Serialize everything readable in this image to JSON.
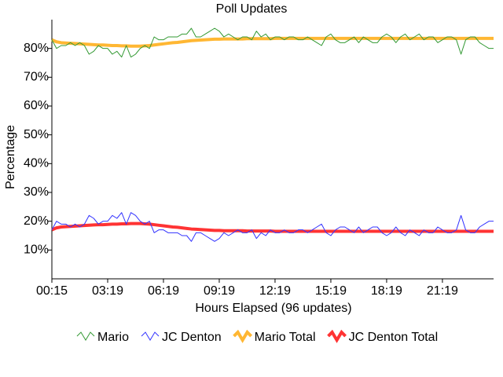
{
  "chart_data": {
    "type": "line",
    "title": "Poll Updates",
    "x_label": "Hours Elapsed (96 updates)",
    "y_label": "Percentage",
    "categories": [
      "00:15",
      null,
      null,
      null,
      null,
      null,
      null,
      null,
      null,
      null,
      null,
      null,
      "03:19",
      null,
      null,
      null,
      null,
      null,
      null,
      null,
      null,
      null,
      null,
      null,
      "06:19",
      null,
      null,
      null,
      null,
      null,
      null,
      null,
      null,
      null,
      null,
      null,
      "09:19",
      null,
      null,
      null,
      null,
      null,
      null,
      null,
      null,
      null,
      null,
      null,
      "12:19",
      null,
      null,
      null,
      null,
      null,
      null,
      null,
      null,
      null,
      null,
      null,
      "15:19",
      null,
      null,
      null,
      null,
      null,
      null,
      null,
      null,
      null,
      null,
      null,
      "18:19",
      null,
      null,
      null,
      null,
      null,
      null,
      null,
      null,
      null,
      null,
      null,
      "21:19",
      null,
      null,
      null,
      null,
      null,
      null,
      null,
      null,
      null,
      null,
      null
    ],
    "ylim": [
      0,
      90
    ],
    "yticks": [
      {
        "value": 10,
        "label": "10%"
      },
      {
        "value": 20,
        "label": "20%"
      },
      {
        "value": 30,
        "label": "30%"
      },
      {
        "value": 40,
        "label": "40%"
      },
      {
        "value": 50,
        "label": "50%"
      },
      {
        "value": 60,
        "label": "60%"
      },
      {
        "value": 70,
        "label": "70%"
      },
      {
        "value": 80,
        "label": "80%"
      }
    ],
    "legend": "bottom",
    "series": [
      {
        "name": "Mario",
        "color": "#339933",
        "width": 1,
        "values": [
          83,
          80,
          81,
          81,
          82,
          81,
          82,
          81,
          78,
          79,
          81,
          80,
          80,
          78,
          79,
          77,
          81,
          77,
          78,
          80,
          81,
          80,
          84,
          83,
          83,
          84,
          84,
          84,
          85,
          85,
          87,
          84,
          84,
          85,
          86,
          87,
          86,
          84,
          85,
          84,
          83,
          84,
          84,
          83,
          86,
          84,
          85,
          83,
          84,
          84,
          83,
          84,
          84,
          83,
          83,
          84,
          83,
          82,
          81,
          84,
          85,
          83,
          82,
          82,
          83,
          84,
          82,
          84,
          83,
          82,
          82,
          84,
          85,
          84,
          82,
          84,
          85,
          83,
          84,
          85,
          83,
          84,
          84,
          82,
          83,
          84,
          84,
          83,
          78,
          83,
          84,
          84,
          82,
          81,
          80,
          80
        ]
      },
      {
        "name": "JC Denton",
        "color": "#3333ff",
        "width": 1,
        "values": [
          17,
          20,
          19,
          19,
          18,
          19,
          18,
          19,
          22,
          21,
          19,
          20,
          20,
          22,
          21,
          23,
          19,
          23,
          22,
          20,
          19,
          20,
          16,
          17,
          17,
          16,
          16,
          16,
          15,
          15,
          13,
          16,
          16,
          15,
          14,
          13,
          14,
          16,
          15,
          16,
          17,
          16,
          16,
          17,
          14,
          16,
          15,
          17,
          16,
          16,
          17,
          16,
          16,
          17,
          17,
          16,
          17,
          18,
          19,
          16,
          15,
          17,
          18,
          18,
          17,
          16,
          18,
          16,
          17,
          18,
          18,
          16,
          15,
          16,
          18,
          16,
          15,
          17,
          16,
          15,
          17,
          16,
          16,
          18,
          17,
          16,
          16,
          17,
          22,
          17,
          16,
          16,
          18,
          19,
          20,
          20
        ]
      },
      {
        "name": "Mario Total",
        "color": "#ffb733",
        "width": 4,
        "values": [
          83,
          82.3,
          82,
          81.9,
          81.8,
          81.7,
          81.6,
          81.5,
          81.4,
          81.3,
          81.2,
          81.2,
          81.1,
          81,
          81,
          80.9,
          80.9,
          80.8,
          80.8,
          80.8,
          80.9,
          81,
          81.2,
          81.4,
          81.6,
          81.8,
          82,
          82.1,
          82.3,
          82.5,
          82.7,
          82.8,
          82.9,
          83,
          83.1,
          83.2,
          83.2,
          83.3,
          83.3,
          83.3,
          83.3,
          83.3,
          83.4,
          83.4,
          83.4,
          83.4,
          83.4,
          83.4,
          83.5,
          83.5,
          83.5,
          83.5,
          83.5,
          83.5,
          83.5,
          83.5,
          83.5,
          83.5,
          83.5,
          83.5,
          83.5,
          83.5,
          83.5,
          83.5,
          83.5,
          83.5,
          83.5,
          83.5,
          83.5,
          83.5,
          83.5,
          83.5,
          83.5,
          83.5,
          83.5,
          83.5,
          83.5,
          83.5,
          83.5,
          83.5,
          83.5,
          83.5,
          83.5,
          83.5,
          83.5,
          83.5,
          83.5,
          83.5,
          83.5,
          83.5,
          83.5,
          83.5,
          83.5,
          83.5,
          83.5,
          83.5
        ]
      },
      {
        "name": "JC Denton Total",
        "color": "#ff3333",
        "width": 4,
        "values": [
          17,
          17.7,
          18,
          18.1,
          18.2,
          18.3,
          18.4,
          18.5,
          18.6,
          18.7,
          18.8,
          18.8,
          18.9,
          19,
          19,
          19.1,
          19.1,
          19.2,
          19.2,
          19.2,
          19.1,
          19,
          18.8,
          18.6,
          18.4,
          18.2,
          18,
          17.9,
          17.7,
          17.5,
          17.3,
          17.2,
          17.1,
          17,
          16.9,
          16.8,
          16.8,
          16.7,
          16.7,
          16.7,
          16.7,
          16.7,
          16.6,
          16.6,
          16.6,
          16.6,
          16.6,
          16.6,
          16.5,
          16.5,
          16.5,
          16.5,
          16.5,
          16.5,
          16.5,
          16.5,
          16.5,
          16.5,
          16.5,
          16.5,
          16.5,
          16.5,
          16.5,
          16.5,
          16.5,
          16.5,
          16.5,
          16.5,
          16.5,
          16.5,
          16.5,
          16.5,
          16.5,
          16.5,
          16.5,
          16.5,
          16.5,
          16.5,
          16.5,
          16.5,
          16.5,
          16.5,
          16.5,
          16.5,
          16.5,
          16.5,
          16.5,
          16.5,
          16.5,
          16.5,
          16.5,
          16.5,
          16.5,
          16.5,
          16.5,
          16.5
        ]
      }
    ]
  }
}
